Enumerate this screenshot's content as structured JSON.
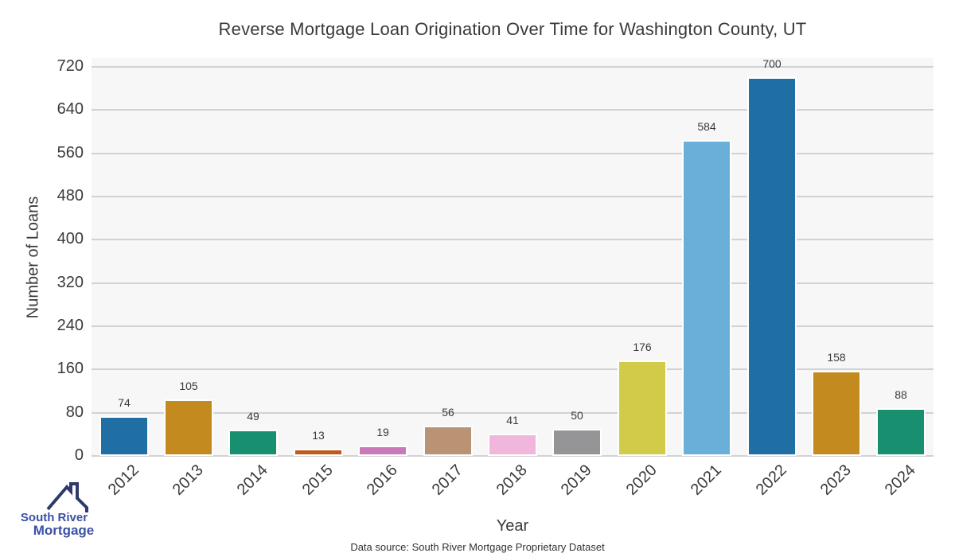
{
  "chart_data": {
    "type": "bar",
    "title": "Reverse Mortgage Loan Origination Over Time for Washington County, UT",
    "xlabel": "Year",
    "ylabel": "Number of Loans",
    "categories": [
      "2012",
      "2013",
      "2014",
      "2015",
      "2016",
      "2017",
      "2018",
      "2019",
      "2020",
      "2021",
      "2022",
      "2023",
      "2024"
    ],
    "values": [
      74,
      105,
      49,
      13,
      19,
      56,
      41,
      50,
      176,
      584,
      700,
      158,
      88
    ],
    "bar_colors": [
      "#1f6fa5",
      "#c38a20",
      "#18906f",
      "#bf5a1b",
      "#c87ab8",
      "#b99373",
      "#f1b6dc",
      "#959598",
      "#d2cb49",
      "#6aaeda",
      "#1f6fa5",
      "#c38a20",
      "#18906f"
    ],
    "ylim": [
      0,
      736
    ],
    "yticks": [
      0,
      80,
      160,
      240,
      320,
      400,
      480,
      560,
      640,
      720
    ],
    "grid": true,
    "legend": "none",
    "value_labels": true
  },
  "footer": {
    "data_source": "Data source: South River Mortgage Proprietary Dataset"
  },
  "logo": {
    "line1": "South River",
    "line2": "Mortgage",
    "text_color": "#3a50a5",
    "roof_color": "#2d3a6b"
  }
}
